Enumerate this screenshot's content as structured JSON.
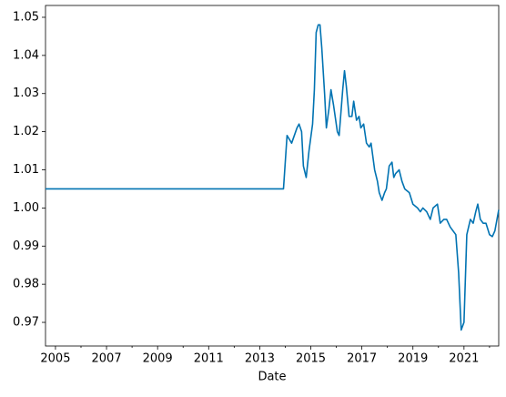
{
  "chart_data": {
    "type": "line",
    "x_label": "Date",
    "x": [
      2004.61,
      2013.93,
      2014.07,
      2014.25,
      2014.46,
      2014.54,
      2014.64,
      2014.71,
      2014.82,
      2014.93,
      2015.07,
      2015.14,
      2015.21,
      2015.29,
      2015.36,
      2015.43,
      2015.54,
      2015.61,
      2015.71,
      2015.79,
      2015.89,
      2016.04,
      2016.11,
      2016.25,
      2016.32,
      2016.39,
      2016.5,
      2016.61,
      2016.68,
      2016.79,
      2016.89,
      2016.96,
      2017.07,
      2017.18,
      2017.29,
      2017.36,
      2017.5,
      2017.61,
      2017.68,
      2017.79,
      2017.89,
      2017.96,
      2018.07,
      2018.18,
      2018.25,
      2018.32,
      2018.46,
      2018.57,
      2018.68,
      2018.86,
      2019.0,
      2019.18,
      2019.29,
      2019.39,
      2019.54,
      2019.68,
      2019.79,
      2019.96,
      2020.07,
      2020.21,
      2020.32,
      2020.46,
      2020.68,
      2020.79,
      2020.89,
      2021.0,
      2021.11,
      2021.25,
      2021.36,
      2021.46,
      2021.54,
      2021.64,
      2021.75,
      2021.86,
      2022.0,
      2022.11,
      2022.21,
      2022.36
    ],
    "series": [
      {
        "color": "#0173b2",
        "values": [
          1.005,
          1.005,
          1.019,
          1.017,
          1.021,
          1.022,
          1.02,
          1.011,
          1.008,
          1.015,
          1.022,
          1.031,
          1.046,
          1.048,
          1.048,
          1.042,
          1.03,
          1.021,
          1.026,
          1.031,
          1.027,
          1.02,
          1.019,
          1.031,
          1.036,
          1.032,
          1.024,
          1.024,
          1.028,
          1.023,
          1.024,
          1.021,
          1.022,
          1.017,
          1.016,
          1.017,
          1.01,
          1.007,
          1.004,
          1.002,
          1.004,
          1.005,
          1.011,
          1.012,
          1.008,
          1.009,
          1.01,
          1.007,
          1.005,
          1.004,
          1.001,
          1.0,
          0.999,
          1.0,
          0.999,
          0.997,
          1.0,
          1.001,
          0.996,
          0.997,
          0.997,
          0.995,
          0.993,
          0.983,
          0.968,
          0.97,
          0.993,
          0.997,
          0.996,
          0.999,
          1.001,
          0.997,
          0.996,
          0.996,
          0.993,
          0.9925,
          0.994,
          0.9995
        ]
      }
    ],
    "xlim": [
      2004.61,
      2022.36
    ],
    "xticks": [
      2005,
      2007,
      2009,
      2011,
      2013,
      2015,
      2017,
      2019,
      2021
    ],
    "xminorticks": [
      2006,
      2008,
      2010,
      2012,
      2014,
      2016,
      2018,
      2020,
      2022
    ],
    "ylim": [
      0.9638,
      1.0531
    ],
    "yticks": [
      0.97,
      0.98,
      0.99,
      {
        "value": 1,
        "label": "1.00"
      },
      1.01,
      1.02,
      1.03,
      1.04,
      1.05
    ],
    "grid": false
  }
}
